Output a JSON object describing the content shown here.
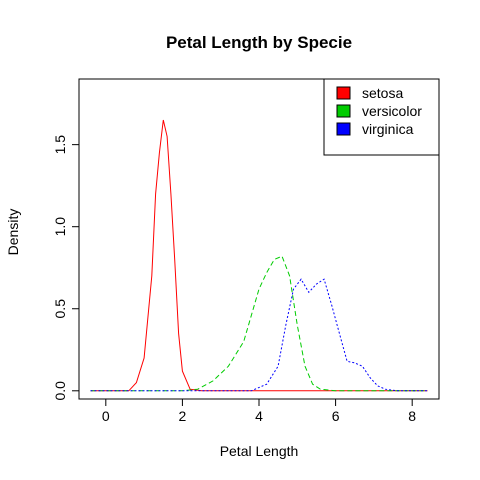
{
  "chart_data": {
    "type": "line",
    "title": "Petal Length by Specie",
    "xlabel": "Petal Length",
    "ylabel": "Density",
    "xlim": [
      -0.7,
      8.7
    ],
    "ylim": [
      -0.05,
      1.9
    ],
    "x_ticks": [
      0,
      2,
      4,
      6,
      8
    ],
    "y_ticks": [
      0.0,
      0.5,
      1.0,
      1.5
    ],
    "x_tick_labels": [
      "0",
      "2",
      "4",
      "6",
      "8"
    ],
    "y_tick_labels": [
      "0.0",
      "0.5",
      "1.0",
      "1.5"
    ],
    "grid": false,
    "legend_position": "top-right",
    "series": [
      {
        "name": "setosa",
        "color": "#ff0000",
        "line_style": "solid",
        "x": [
          -0.4,
          0.6,
          0.8,
          1.0,
          1.2,
          1.3,
          1.4,
          1.5,
          1.6,
          1.7,
          1.8,
          1.9,
          2.0,
          2.2,
          2.5,
          3.0,
          4.0,
          5.0,
          6.0,
          7.0,
          8.0,
          8.4
        ],
        "y": [
          0,
          0,
          0.05,
          0.2,
          0.7,
          1.2,
          1.45,
          1.65,
          1.55,
          1.2,
          0.8,
          0.35,
          0.12,
          0.01,
          0,
          0,
          0,
          0,
          0,
          0,
          0,
          0
        ]
      },
      {
        "name": "versicolor",
        "color": "#00cc00",
        "line_style": "dashed",
        "x": [
          -0.4,
          2.0,
          2.4,
          2.8,
          3.2,
          3.6,
          4.0,
          4.2,
          4.4,
          4.6,
          4.8,
          5.0,
          5.2,
          5.4,
          5.6,
          6.0,
          7.0,
          8.0,
          8.4
        ],
        "y": [
          0,
          0,
          0.01,
          0.06,
          0.15,
          0.3,
          0.62,
          0.72,
          0.8,
          0.82,
          0.7,
          0.4,
          0.15,
          0.04,
          0.01,
          0,
          0,
          0,
          0
        ],
        "note": ""
      },
      {
        "name": "virginica",
        "color": "#0000ff",
        "line_style": "dotted",
        "x": [
          -0.4,
          3.8,
          4.2,
          4.5,
          4.7,
          4.9,
          5.1,
          5.3,
          5.5,
          5.7,
          5.9,
          6.1,
          6.3,
          6.5,
          6.7,
          6.9,
          7.1,
          7.3,
          7.6,
          8.0,
          8.4
        ],
        "y": [
          0,
          0,
          0.04,
          0.15,
          0.4,
          0.62,
          0.68,
          0.6,
          0.65,
          0.68,
          0.52,
          0.35,
          0.18,
          0.17,
          0.15,
          0.08,
          0.03,
          0.01,
          0,
          0,
          0
        ]
      }
    ]
  }
}
